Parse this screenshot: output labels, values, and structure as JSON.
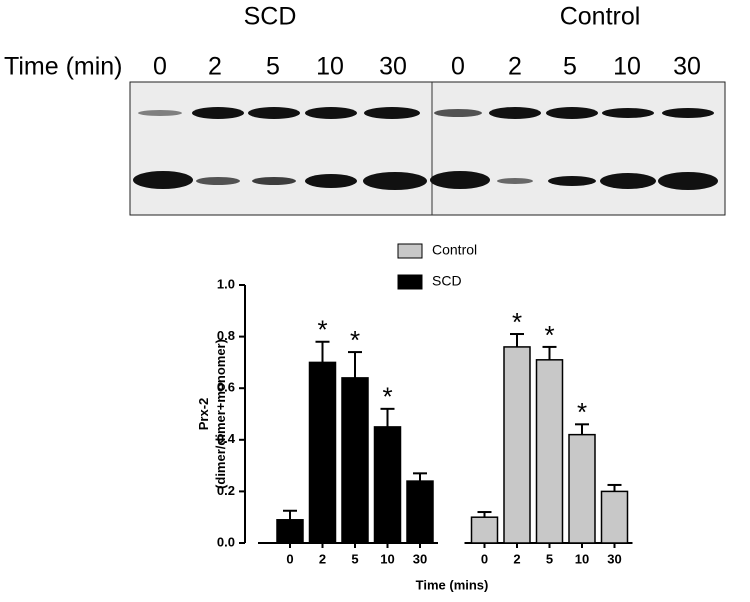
{
  "blot": {
    "groups": [
      {
        "label": "SCD"
      },
      {
        "label": "Control"
      }
    ],
    "time_label": "Time (min)",
    "lanes": [
      "0",
      "2",
      "5",
      "10",
      "30"
    ]
  },
  "chart_data": {
    "type": "bar",
    "y_label": [
      "Prx-2",
      "(dimer/dimer+monomer)"
    ],
    "x_label": "Time (mins)",
    "categories": [
      "0",
      "2",
      "5",
      "10",
      "30",
      "0",
      "2",
      "5",
      "10",
      "30"
    ],
    "series": [
      {
        "name": "Control",
        "color": "#c8c8c8",
        "values": [
          null,
          null,
          null,
          null,
          null,
          0.1,
          0.76,
          0.71,
          0.42,
          0.2
        ],
        "errors": [
          null,
          null,
          null,
          null,
          null,
          0.02,
          0.05,
          0.05,
          0.04,
          0.025
        ],
        "significant": [
          null,
          null,
          null,
          null,
          null,
          false,
          true,
          true,
          true,
          false
        ]
      },
      {
        "name": "SCD",
        "color": "#000000",
        "values": [
          0.09,
          0.7,
          0.64,
          0.45,
          0.24,
          null,
          null,
          null,
          null,
          null
        ],
        "errors": [
          0.035,
          0.08,
          0.1,
          0.07,
          0.03,
          null,
          null,
          null,
          null,
          null
        ],
        "significant": [
          false,
          true,
          true,
          true,
          false,
          null,
          null,
          null,
          null,
          null
        ]
      }
    ],
    "significance_marker": "*",
    "ylim": [
      0,
      1
    ],
    "yticks": [
      {
        "value": 0,
        "label": "0.0"
      },
      {
        "value": 0.2,
        "label": "0.2"
      },
      {
        "value": 0.4,
        "label": "0.4"
      },
      {
        "value": 0.6,
        "label": "0.6"
      },
      {
        "value": 0.8,
        "label": "0.8"
      },
      {
        "value": 1,
        "label": "1.0"
      }
    ],
    "legend": "top"
  }
}
